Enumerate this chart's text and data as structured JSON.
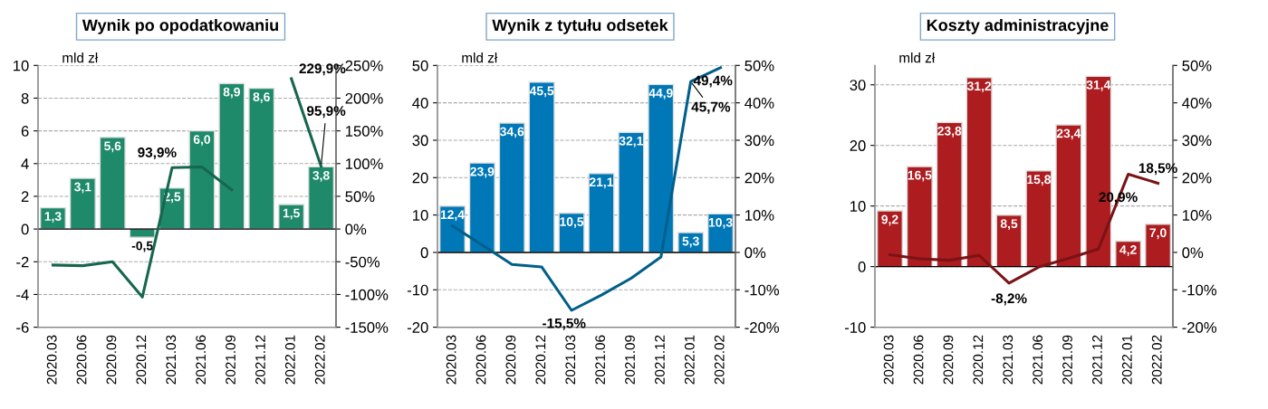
{
  "chart_data": [
    {
      "type": "bar",
      "title": "Wynik po opodatkowaniu",
      "ylabel": "mld zł",
      "categories": [
        "2020.03",
        "2020.06",
        "2020.09",
        "2020.12",
        "2021.03",
        "2021.06",
        "2021.09",
        "2021.12",
        "2022.01",
        "2022.02"
      ],
      "series": [
        {
          "color": "#1f8a6a",
          "values": [
            1.3,
            3.1,
            5.6,
            -0.5,
            2.5,
            6.0,
            8.9,
            8.6,
            1.5,
            3.8
          ],
          "value_labels": [
            "1,3",
            "3,1",
            "5,6",
            "-0,5",
            "2,5",
            "6,0",
            "8,9",
            "8,6",
            "1,5",
            "3,8"
          ]
        },
        {
          "type": "line",
          "axis": "y2",
          "color": "#17664f",
          "values": [
            -55,
            -56,
            -50,
            -104,
            93.9,
            95,
            60,
            null,
            229.9,
            95.9
          ],
          "value_labels": [
            null,
            null,
            null,
            null,
            "93,9%",
            null,
            null,
            null,
            "229,9%",
            "95,9%"
          ]
        }
      ],
      "ylim": [
        -6,
        10
      ],
      "yticks": [
        -6,
        -4,
        -2,
        0,
        2,
        4,
        6,
        8,
        10
      ],
      "y2lim": [
        -150,
        250
      ],
      "y2ticks": [
        {
          "value": -150,
          "label": "-150%"
        },
        {
          "value": -100,
          "label": "-100%"
        },
        {
          "value": -50,
          "label": "-50%"
        },
        {
          "value": 0,
          "label": "0%"
        },
        {
          "value": 50,
          "label": "50%"
        },
        {
          "value": 100,
          "label": "100%"
        },
        {
          "value": 150,
          "label": "150%"
        },
        {
          "value": 200,
          "label": "200%"
        },
        {
          "value": 250,
          "label": "250%"
        }
      ],
      "grid": "y",
      "line_style": "solid",
      "marker": "none"
    },
    {
      "type": "bar",
      "title": "Wynik z tytułu odsetek",
      "ylabel": "mld zł",
      "categories": [
        "2020.03",
        "2020.06",
        "2020.09",
        "2020.12",
        "2021.03",
        "2021.06",
        "2021.09",
        "2021.12",
        "2022.01",
        "2022.02"
      ],
      "series": [
        {
          "color": "#0078b8",
          "values": [
            12.4,
            23.9,
            34.6,
            45.5,
            10.5,
            21.1,
            32.1,
            44.9,
            5.3,
            10.3
          ],
          "value_labels": [
            "12,4",
            "23,9",
            "34,6",
            "45,5",
            "10,5",
            "21,1",
            "32,1",
            "44,9",
            "5,3",
            "10,3"
          ]
        },
        {
          "type": "line",
          "axis": "y2",
          "color": "#005f8a",
          "values": [
            7.1,
            2.0,
            -3.2,
            -3.9,
            -15.5,
            -11.4,
            -6.9,
            -1.2,
            45.7,
            49.4
          ],
          "value_labels": [
            null,
            null,
            null,
            null,
            "-15,5%",
            null,
            null,
            null,
            "45,7%",
            "49,4%"
          ]
        }
      ],
      "ylim": [
        -20,
        50
      ],
      "yticks": [
        -20,
        -10,
        0,
        10,
        20,
        30,
        40,
        50
      ],
      "y2lim": [
        -20,
        50
      ],
      "y2ticks": [
        {
          "value": -20,
          "label": "-20%"
        },
        {
          "value": -10,
          "label": "-10%"
        },
        {
          "value": 0,
          "label": "0%"
        },
        {
          "value": 10,
          "label": "10%"
        },
        {
          "value": 20,
          "label": "20%"
        },
        {
          "value": 30,
          "label": "30%"
        },
        {
          "value": 40,
          "label": "40%"
        },
        {
          "value": 50,
          "label": "50%"
        }
      ],
      "grid": "y",
      "line_style": "solid",
      "marker": "none"
    },
    {
      "type": "bar",
      "title": "Koszty administracyjne",
      "ylabel": "mld zł",
      "categories": [
        "2020.03",
        "2020.06",
        "2020.09",
        "2020.12",
        "2021.03",
        "2021.06",
        "2021.09",
        "2021.12",
        "2022.01",
        "2022.02"
      ],
      "series": [
        {
          "color": "#ad1c1f",
          "values": [
            9.2,
            16.5,
            23.8,
            31.2,
            8.5,
            15.8,
            23.4,
            31.4,
            4.2,
            7.0
          ],
          "value_labels": [
            "9,2",
            "16,5",
            "23,8",
            "31,2",
            "8,5",
            "15,8",
            "23,4",
            "31,4",
            "4,2",
            "7,0"
          ]
        },
        {
          "type": "line",
          "axis": "y2",
          "color": "#7a1315",
          "values": [
            -0.6,
            -1.7,
            -2.1,
            -0.8,
            -8.2,
            -3.9,
            -1.6,
            0.9,
            20.9,
            18.5
          ],
          "value_labels": [
            null,
            null,
            null,
            null,
            "-8,2%",
            null,
            null,
            null,
            "20,9%",
            "18,5%"
          ]
        }
      ],
      "ylim": [
        -10,
        33.2
      ],
      "yticks": [
        -10,
        0,
        10,
        20,
        30
      ],
      "y2lim": [
        -20,
        50
      ],
      "y2ticks": [
        {
          "value": -20,
          "label": "-20%"
        },
        {
          "value": -10,
          "label": "-10%"
        },
        {
          "value": 0,
          "label": "0%"
        },
        {
          "value": 10,
          "label": "10%"
        },
        {
          "value": 20,
          "label": "20%"
        },
        {
          "value": 30,
          "label": "30%"
        },
        {
          "value": 40,
          "label": "40%"
        },
        {
          "value": 50,
          "label": "50%"
        }
      ],
      "grid": "y",
      "line_style": "solid",
      "marker": "none"
    }
  ]
}
